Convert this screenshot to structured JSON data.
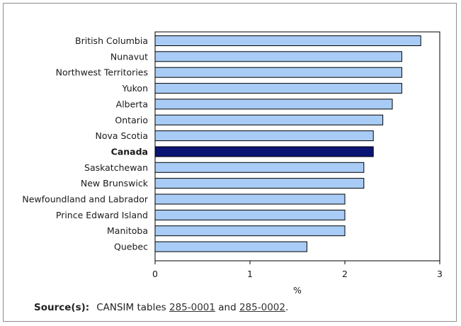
{
  "chart_data": {
    "type": "bar",
    "orientation": "horizontal",
    "categories": [
      "British Columbia",
      "Nunavut",
      "Northwest Territories",
      "Yukon",
      "Alberta",
      "Ontario",
      "Nova Scotia",
      "Canada",
      "Saskatchewan",
      "New Brunswick",
      "Newfoundland and Labrador",
      "Prince Edward Island",
      "Manitoba",
      "Quebec"
    ],
    "values": [
      2.8,
      2.6,
      2.6,
      2.6,
      2.5,
      2.4,
      2.3,
      2.3,
      2.2,
      2.2,
      2.0,
      2.0,
      2.0,
      1.6
    ],
    "highlight_category": "Canada",
    "title": "",
    "xlabel": "%",
    "ylabel": "",
    "xlim": [
      0,
      3
    ],
    "xticks": [
      "0",
      "1",
      "2",
      "3"
    ],
    "grid": false,
    "legend": "none",
    "colors": {
      "bar": "#a8ccf5",
      "highlight": "#0a1473",
      "bar_stroke": "#000000",
      "axis": "#000000",
      "text": "#1a1a1a"
    }
  },
  "footer": {
    "source_label": "Source(s):",
    "source_prefix": "CANSIM tables ",
    "table1": "285-0001",
    "conjunction": " and ",
    "table2": "285-0002",
    "suffix": "."
  }
}
